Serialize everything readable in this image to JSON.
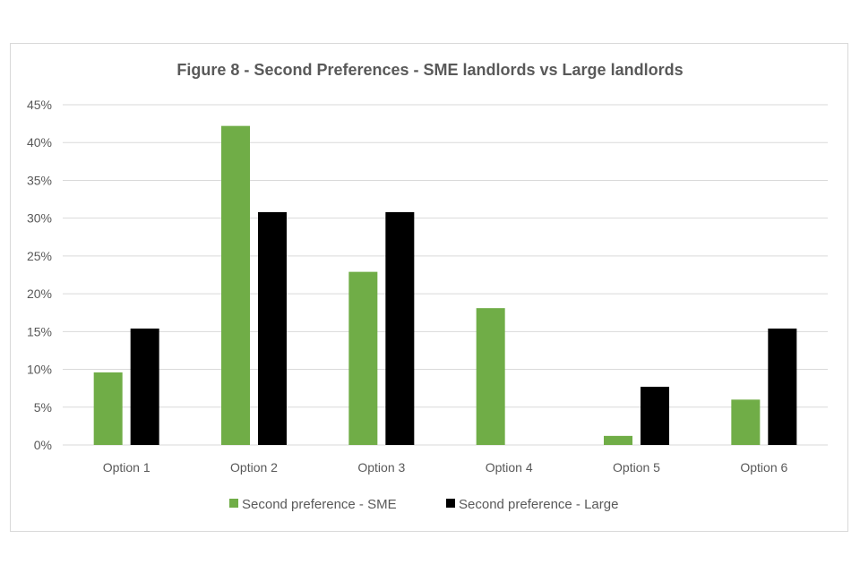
{
  "chart_data": {
    "type": "bar",
    "title": "Figure 8 - Second Preferences - SME landlords vs Large landlords",
    "xlabel": "",
    "ylabel": "",
    "categories": [
      "Option 1",
      "Option 2",
      "Option 3",
      "Option 4",
      "Option 5",
      "Option 6"
    ],
    "series": [
      {
        "name": "Second preference - SME",
        "color": "#70ad47",
        "values": [
          9.6,
          42.2,
          22.9,
          18.1,
          1.2,
          6.0
        ]
      },
      {
        "name": "Second preference - Large",
        "color": "#000000",
        "values": [
          15.4,
          30.8,
          30.8,
          0,
          7.7,
          15.4
        ]
      }
    ],
    "ylim": [
      0,
      45
    ],
    "ytick_values": [
      0,
      5,
      10,
      15,
      20,
      25,
      30,
      35,
      40,
      45
    ],
    "ytick_labels": [
      "0%",
      "5%",
      "10%",
      "15%",
      "20%",
      "25%",
      "30%",
      "35%",
      "40%",
      "45%"
    ],
    "grid": true,
    "legend_position": "bottom"
  }
}
